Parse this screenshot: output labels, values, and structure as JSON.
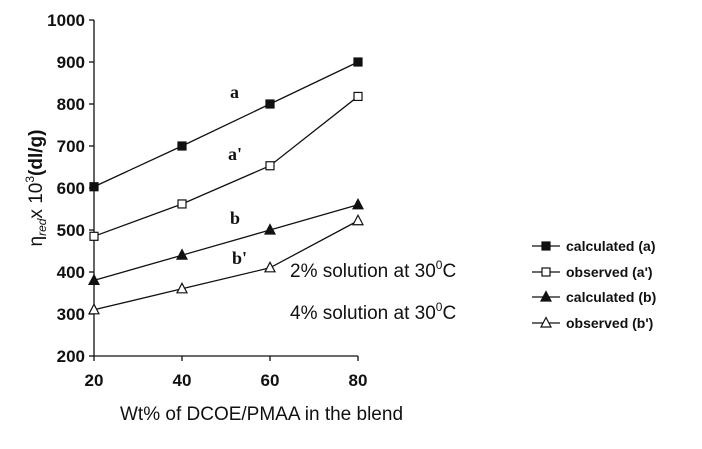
{
  "chart_data": {
    "type": "line",
    "xlabel": "Wt% of DCOE/PMAA in the blend",
    "ylabel": "η",
    "ylabel_sub": "red",
    "ylabel_rest": "x 10",
    "ylabel_sup": "3",
    "ylabel_unit": "(dl/g)",
    "xlim": [
      20,
      80
    ],
    "ylim": [
      200,
      1000
    ],
    "xticks": [
      "20",
      "40",
      "60",
      "80"
    ],
    "yticks": [
      "200",
      "300",
      "400",
      "500",
      "600",
      "700",
      "800",
      "900",
      "1000"
    ],
    "x": [
      20,
      40,
      60,
      80
    ],
    "grid": false,
    "legend_position": "right",
    "series": [
      {
        "name": "calculated (a)",
        "label": "a",
        "marker": "filled-square",
        "values": [
          603,
          700,
          800,
          900
        ]
      },
      {
        "name": "observed  (a')",
        "label": "a'",
        "marker": "open-square",
        "values": [
          485,
          562,
          653,
          818
        ]
      },
      {
        "name": "calculated (b)",
        "label": "b",
        "marker": "filled-triangle",
        "values": [
          380,
          440,
          500,
          560
        ]
      },
      {
        "name": "observed (b')",
        "label": "b'",
        "marker": "open-triangle",
        "values": [
          310,
          360,
          410,
          522
        ]
      }
    ],
    "annotations": [
      {
        "id": "note1",
        "pre": "2% solution at 30",
        "sup": "0",
        "post": "C"
      },
      {
        "id": "note2",
        "pre": "4% solution at 30",
        "sup": "0",
        "post": "C"
      }
    ]
  }
}
